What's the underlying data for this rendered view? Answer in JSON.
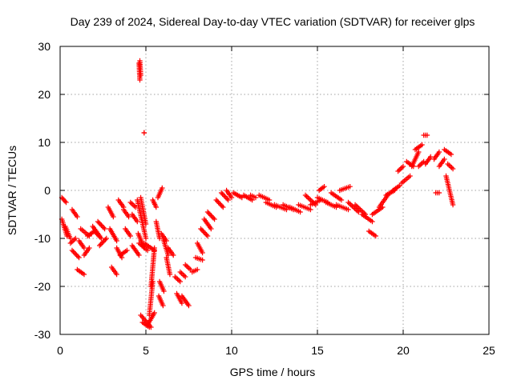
{
  "chart_data": {
    "type": "scatter",
    "title": "Day 239 of 2024, Sidereal Day-to-day VTEC variation (SDTVAR) for receiver glps",
    "xlabel": "GPS time / hours",
    "ylabel": "SDTVAR / TECUs",
    "xlim": [
      0,
      25
    ],
    "ylim": [
      -30,
      30
    ],
    "xticks": [
      0,
      5,
      10,
      15,
      20,
      25
    ],
    "yticks": [
      -30,
      -20,
      -10,
      0,
      10,
      20,
      30
    ],
    "grid": true,
    "marker": "+",
    "marker_color": "#ff0000",
    "segments": [
      {
        "x": [
          0.1,
          0.35
        ],
        "y": [
          -1.5,
          -2.5
        ]
      },
      {
        "x": [
          0.1,
          0.4
        ],
        "y": [
          -6.0,
          -9.5
        ]
      },
      {
        "x": [
          0.3,
          0.6
        ],
        "y": [
          -7.5,
          -10.0
        ]
      },
      {
        "x": [
          0.6,
          0.9
        ],
        "y": [
          -11.0,
          -10.0
        ]
      },
      {
        "x": [
          0.7,
          1.0
        ],
        "y": [
          -4.0,
          -5.5
        ]
      },
      {
        "x": [
          0.7,
          1.1
        ],
        "y": [
          -12.5,
          -14.0
        ]
      },
      {
        "x": [
          1.0,
          1.4
        ],
        "y": [
          -16.5,
          -17.5
        ]
      },
      {
        "x": [
          1.1,
          1.4
        ],
        "y": [
          -10.5,
          -12.0
        ]
      },
      {
        "x": [
          1.2,
          1.7
        ],
        "y": [
          -8.0,
          -9.5
        ]
      },
      {
        "x": [
          1.4,
          1.7
        ],
        "y": [
          -13.5,
          -12.0
        ]
      },
      {
        "x": [
          1.6,
          2.0
        ],
        "y": [
          -9.5,
          -8.5
        ]
      },
      {
        "x": [
          1.9,
          2.3
        ],
        "y": [
          -7.5,
          -9.5
        ]
      },
      {
        "x": [
          2.0,
          2.4
        ],
        "y": [
          -8.5,
          -10.0
        ]
      },
      {
        "x": [
          2.2,
          2.6
        ],
        "y": [
          -6.5,
          -8.0
        ]
      },
      {
        "x": [
          2.3,
          2.7
        ],
        "y": [
          -11.5,
          -10.0
        ]
      },
      {
        "x": [
          2.8,
          3.1
        ],
        "y": [
          -3.5,
          -5.5
        ]
      },
      {
        "x": [
          2.9,
          3.3
        ],
        "y": [
          -8.0,
          -10.5
        ]
      },
      {
        "x": [
          3.0,
          3.3
        ],
        "y": [
          -16.0,
          -17.5
        ]
      },
      {
        "x": [
          3.3,
          3.6
        ],
        "y": [
          -12.0,
          -14.0
        ]
      },
      {
        "x": [
          3.4,
          3.7
        ],
        "y": [
          -2.0,
          -3.5
        ]
      },
      {
        "x": [
          3.5,
          3.9
        ],
        "y": [
          -13.5,
          -12.5
        ]
      },
      {
        "x": [
          3.7,
          4.0
        ],
        "y": [
          -4.0,
          -5.5
        ]
      },
      {
        "x": [
          3.8,
          4.1
        ],
        "y": [
          -8.0,
          -9.5
        ]
      },
      {
        "x": [
          4.1,
          4.4
        ],
        "y": [
          -2.5,
          -3.5
        ]
      },
      {
        "x": [
          4.2,
          4.5
        ],
        "y": [
          -5.0,
          -6.5
        ]
      },
      {
        "x": [
          4.2,
          4.6
        ],
        "y": [
          -11.5,
          -13.5
        ]
      },
      {
        "x": [
          4.6,
          4.65
        ],
        "y": [
          26.5,
          23.0
        ]
      },
      {
        "x": [
          4.65,
          4.7
        ],
        "y": [
          27.0,
          24.0
        ]
      },
      {
        "x": [
          4.9,
          4.9
        ],
        "y": [
          12.0,
          12.0
        ]
      },
      {
        "x": [
          4.5,
          5.0
        ],
        "y": [
          -2.0,
          -10.0
        ]
      },
      {
        "x": [
          4.55,
          4.9
        ],
        "y": [
          -9.0,
          -12.0
        ]
      },
      {
        "x": [
          4.6,
          5.1
        ],
        "y": [
          -11.0,
          -12.5
        ]
      },
      {
        "x": [
          4.7,
          5.0
        ],
        "y": [
          -1.5,
          -7.0
        ]
      },
      {
        "x": [
          4.9,
          5.5
        ],
        "y": [
          -11.0,
          -12.5
        ]
      },
      {
        "x": [
          4.7,
          5.3
        ],
        "y": [
          -26.0,
          -28.5
        ]
      },
      {
        "x": [
          4.8,
          5.2
        ],
        "y": [
          -27.5,
          -28.5
        ]
      },
      {
        "x": [
          5.1,
          5.5
        ],
        "y": [
          -28.0,
          -25.5
        ]
      },
      {
        "x": [
          5.2,
          5.4
        ],
        "y": [
          -26.0,
          -19.0
        ]
      },
      {
        "x": [
          5.3,
          5.5
        ],
        "y": [
          -20.0,
          -12.0
        ]
      },
      {
        "x": [
          5.4,
          5.6
        ],
        "y": [
          -2.0,
          -3.5
        ]
      },
      {
        "x": [
          5.6,
          5.8
        ],
        "y": [
          -6.5,
          -10.0
        ]
      },
      {
        "x": [
          5.7,
          5.95
        ],
        "y": [
          -1.5,
          0.5
        ]
      },
      {
        "x": [
          5.75,
          6.0
        ],
        "y": [
          -22.0,
          -24.0
        ]
      },
      {
        "x": [
          5.8,
          6.05
        ],
        "y": [
          -19.0,
          -21.0
        ]
      },
      {
        "x": [
          5.9,
          6.2
        ],
        "y": [
          -9.0,
          -10.5
        ]
      },
      {
        "x": [
          6.0,
          6.3
        ],
        "y": [
          -10.0,
          -13.5
        ]
      },
      {
        "x": [
          6.2,
          6.4
        ],
        "y": [
          -14.0,
          -17.5
        ]
      },
      {
        "x": [
          6.3,
          6.6
        ],
        "y": [
          -12.0,
          -13.5
        ]
      },
      {
        "x": [
          6.7,
          7.0
        ],
        "y": [
          -18.0,
          -19.0
        ]
      },
      {
        "x": [
          6.8,
          7.1
        ],
        "y": [
          -21.5,
          -23.5
        ]
      },
      {
        "x": [
          7.0,
          7.3
        ],
        "y": [
          -17.0,
          -18.0
        ]
      },
      {
        "x": [
          7.1,
          7.5
        ],
        "y": [
          -22.0,
          -24.0
        ]
      },
      {
        "x": [
          7.3,
          7.6
        ],
        "y": [
          -15.5,
          -16.5
        ]
      },
      {
        "x": [
          7.7,
          8.0
        ],
        "y": [
          -17.0,
          -16.5
        ]
      },
      {
        "x": [
          7.9,
          8.3
        ],
        "y": [
          -14.0,
          -14.5
        ]
      },
      {
        "x": [
          8.0,
          8.3
        ],
        "y": [
          -11.0,
          -13.0
        ]
      },
      {
        "x": [
          8.2,
          8.6
        ],
        "y": [
          -8.0,
          -9.5
        ]
      },
      {
        "x": [
          8.4,
          8.8
        ],
        "y": [
          -6.0,
          -8.0
        ]
      },
      {
        "x": [
          8.6,
          9.0
        ],
        "y": [
          -4.5,
          -6.0
        ]
      },
      {
        "x": [
          9.1,
          9.5
        ],
        "y": [
          -2.0,
          -3.5
        ]
      },
      {
        "x": [
          9.4,
          9.8
        ],
        "y": [
          -0.5,
          -2.0
        ]
      },
      {
        "x": [
          9.7,
          10.0
        ],
        "y": [
          0.0,
          -1.5
        ]
      },
      {
        "x": [
          10.1,
          10.6
        ],
        "y": [
          -0.5,
          -1.5
        ]
      },
      {
        "x": [
          10.7,
          11.2
        ],
        "y": [
          -1.0,
          -2.0
        ]
      },
      {
        "x": [
          11.1,
          11.4
        ],
        "y": [
          -1.0,
          -1.5
        ]
      },
      {
        "x": [
          11.6,
          12.2
        ],
        "y": [
          -1.0,
          -2.0
        ]
      },
      {
        "x": [
          12.0,
          12.6
        ],
        "y": [
          -2.5,
          -3.5
        ]
      },
      {
        "x": [
          12.5,
          13.2
        ],
        "y": [
          -3.0,
          -4.0
        ]
      },
      {
        "x": [
          13.0,
          13.6
        ],
        "y": [
          -3.0,
          -4.0
        ]
      },
      {
        "x": [
          13.4,
          14.0
        ],
        "y": [
          -3.5,
          -4.5
        ]
      },
      {
        "x": [
          13.9,
          14.6
        ],
        "y": [
          -3.0,
          -4.0
        ]
      },
      {
        "x": [
          14.3,
          14.9
        ],
        "y": [
          -1.0,
          -3.0
        ]
      },
      {
        "x": [
          14.6,
          15.2
        ],
        "y": [
          -3.0,
          -2.0
        ]
      },
      {
        "x": [
          15.0,
          15.6
        ],
        "y": [
          -1.5,
          -2.5
        ]
      },
      {
        "x": [
          15.1,
          15.4
        ],
        "y": [
          0.0,
          0.8
        ]
      },
      {
        "x": [
          15.5,
          16.1
        ],
        "y": [
          -2.5,
          -3.5
        ]
      },
      {
        "x": [
          15.8,
          16.4
        ],
        "y": [
          -0.5,
          -2.0
        ]
      },
      {
        "x": [
          16.1,
          16.8
        ],
        "y": [
          -3.0,
          -4.0
        ]
      },
      {
        "x": [
          16.3,
          16.9
        ],
        "y": [
          0.0,
          0.8
        ]
      },
      {
        "x": [
          16.8,
          17.4
        ],
        "y": [
          -2.5,
          -4.5
        ]
      },
      {
        "x": [
          17.2,
          17.8
        ],
        "y": [
          -3.0,
          -5.0
        ]
      },
      {
        "x": [
          17.6,
          18.2
        ],
        "y": [
          -5.0,
          -6.5
        ]
      },
      {
        "x": [
          18.0,
          18.4
        ],
        "y": [
          -8.5,
          -9.5
        ]
      },
      {
        "x": [
          18.2,
          18.8
        ],
        "y": [
          -5.0,
          -3.5
        ]
      },
      {
        "x": [
          18.6,
          19.1
        ],
        "y": [
          -3.5,
          -1.0
        ]
      },
      {
        "x": [
          19.0,
          19.5
        ],
        "y": [
          -1.0,
          0.0
        ]
      },
      {
        "x": [
          19.4,
          19.8
        ],
        "y": [
          0.0,
          1.0
        ]
      },
      {
        "x": [
          19.7,
          20.0
        ],
        "y": [
          4.0,
          5.0
        ]
      },
      {
        "x": [
          19.9,
          20.4
        ],
        "y": [
          1.5,
          3.0
        ]
      },
      {
        "x": [
          20.2,
          20.6
        ],
        "y": [
          6.0,
          5.0
        ]
      },
      {
        "x": [
          20.5,
          20.9
        ],
        "y": [
          5.0,
          8.0
        ]
      },
      {
        "x": [
          20.7,
          21.1
        ],
        "y": [
          8.5,
          9.5
        ]
      },
      {
        "x": [
          20.9,
          21.2
        ],
        "y": [
          5.0,
          6.0
        ]
      },
      {
        "x": [
          21.2,
          21.4
        ],
        "y": [
          11.5,
          11.5
        ]
      },
      {
        "x": [
          21.3,
          21.6
        ],
        "y": [
          5.5,
          7.0
        ]
      },
      {
        "x": [
          21.8,
          22.1
        ],
        "y": [
          6.5,
          8.0
        ]
      },
      {
        "x": [
          21.9,
          22.1
        ],
        "y": [
          -0.5,
          -0.5
        ]
      },
      {
        "x": [
          22.1,
          22.4
        ],
        "y": [
          5.0,
          6.5
        ]
      },
      {
        "x": [
          22.4,
          22.8
        ],
        "y": [
          8.5,
          7.5
        ]
      },
      {
        "x": [
          22.5,
          22.9
        ],
        "y": [
          3.0,
          -3.0
        ]
      },
      {
        "x": [
          22.6,
          22.9
        ],
        "y": [
          5.5,
          4.5
        ]
      }
    ]
  }
}
